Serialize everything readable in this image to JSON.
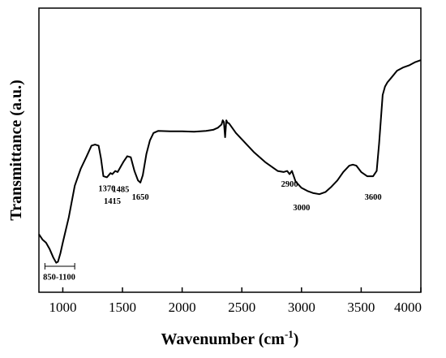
{
  "chart_data": {
    "type": "line",
    "title": "",
    "xlabel": "Wavenumber (cm",
    "xlabel_superscript": "-1",
    "xlabel_suffix": ")",
    "ylabel": "Transmittance (a.u.)",
    "xlim": [
      800,
      4000
    ],
    "ylim": [
      0,
      1
    ],
    "y_ticks_shown": false,
    "grid": false,
    "x_ticks": [
      "1000",
      "1500",
      "2000",
      "2500",
      "3000",
      "3500",
      "4000"
    ],
    "series": [
      {
        "color": "#000000",
        "x": [
          800,
          830,
          860,
          890,
          920,
          945,
          960,
          980,
          1000,
          1050,
          1100,
          1150,
          1200,
          1240,
          1270,
          1300,
          1320,
          1340,
          1370,
          1400,
          1415,
          1440,
          1460,
          1485,
          1510,
          1540,
          1570,
          1600,
          1630,
          1650,
          1670,
          1700,
          1730,
          1760,
          1800,
          1900,
          2000,
          2100,
          2200,
          2260,
          2300,
          2330,
          2340,
          2350,
          2360,
          2370,
          2380,
          2390,
          2400,
          2450,
          2500,
          2600,
          2700,
          2800,
          2850,
          2880,
          2900,
          2920,
          2950,
          3000,
          3050,
          3100,
          3150,
          3200,
          3250,
          3300,
          3350,
          3400,
          3430,
          3460,
          3500,
          3550,
          3600,
          3630,
          3650,
          3680,
          3700,
          3720,
          3750,
          3800,
          3850,
          3900,
          3950,
          4000
        ],
        "y": [
          0.14,
          0.115,
          0.1,
          0.07,
          0.03,
          0.005,
          0.01,
          0.05,
          0.1,
          0.22,
          0.37,
          0.45,
          0.51,
          0.56,
          0.565,
          0.56,
          0.5,
          0.415,
          0.41,
          0.43,
          0.425,
          0.44,
          0.435,
          0.46,
          0.485,
          0.51,
          0.505,
          0.44,
          0.395,
          0.385,
          0.42,
          0.52,
          0.585,
          0.62,
          0.63,
          0.628,
          0.628,
          0.626,
          0.63,
          0.635,
          0.645,
          0.66,
          0.68,
          0.672,
          0.6,
          0.68,
          0.668,
          0.667,
          0.66,
          0.62,
          0.59,
          0.53,
          0.48,
          0.44,
          0.435,
          0.44,
          0.425,
          0.44,
          0.39,
          0.36,
          0.345,
          0.335,
          0.33,
          0.34,
          0.365,
          0.395,
          0.435,
          0.465,
          0.47,
          0.465,
          0.435,
          0.415,
          0.415,
          0.44,
          0.57,
          0.8,
          0.84,
          0.86,
          0.88,
          0.915,
          0.93,
          0.94,
          0.955,
          0.965
        ]
      }
    ],
    "annotations": [
      {
        "text": "1370",
        "x": 1370,
        "y": 0.36
      },
      {
        "text": "1415",
        "x": 1415,
        "y": 0.3
      },
      {
        "text": "1485",
        "x": 1485,
        "y": 0.355
      },
      {
        "text": "1650",
        "x": 1650,
        "y": 0.32
      },
      {
        "text": "2900",
        "x": 2900,
        "y": 0.38
      },
      {
        "text": "3000",
        "x": 3000,
        "y": 0.27
      },
      {
        "text": "3600",
        "x": 3600,
        "y": 0.32
      },
      {
        "text": "850-1100",
        "x": 970,
        "y": -0.06
      }
    ],
    "bracket": {
      "x_start": 850,
      "x_end": 1100,
      "label": "850-1100"
    }
  }
}
